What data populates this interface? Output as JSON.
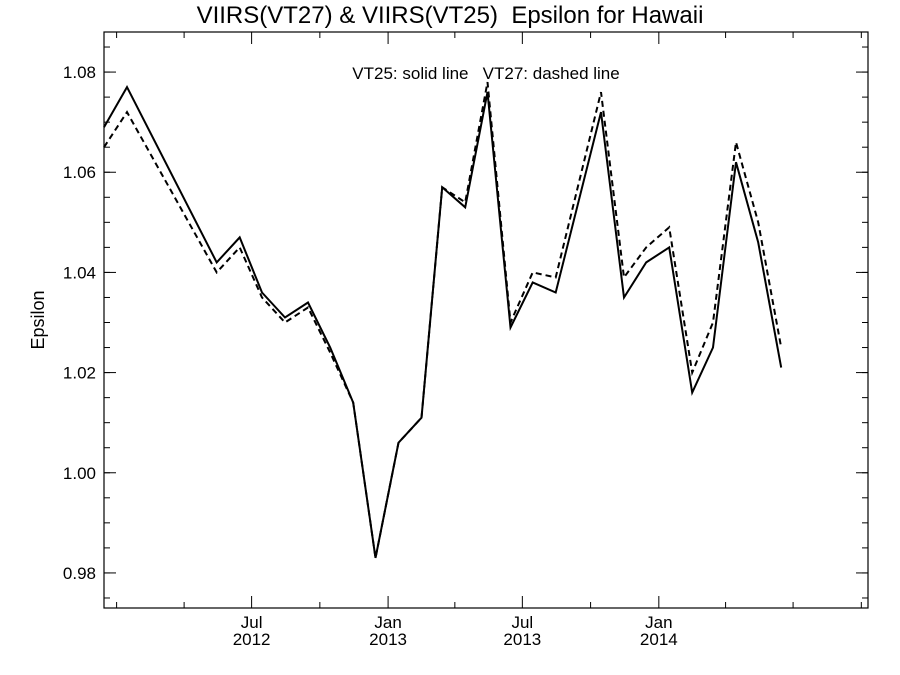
{
  "chart_data": {
    "type": "line",
    "title": "VIIRS(VT27) & VIIRS(VT25)  Epsilon for Hawaii",
    "ylabel": "Epsilon",
    "xlabel": "",
    "annotation": "VT25: solid line   VT27: dashed line",
    "ylim": [
      0.973,
      1.088
    ],
    "yticks": [
      "0.98",
      "1.00",
      "1.02",
      "1.04",
      "1.06",
      "1.08"
    ],
    "ytick_values": [
      0.98,
      1.0,
      1.02,
      1.04,
      1.06,
      1.08
    ],
    "xlim": [
      "2011-12-15",
      "2014-10-10"
    ],
    "xticks": [
      {
        "date": "2012-07-01",
        "month": "Jul",
        "year": "2012"
      },
      {
        "date": "2013-01-01",
        "month": "Jan",
        "year": "2013"
      },
      {
        "date": "2013-07-01",
        "month": "Jul",
        "year": "2013"
      },
      {
        "date": "2014-01-01",
        "month": "Jan",
        "year": "2014"
      }
    ],
    "grid": false,
    "series": [
      {
        "name": "VT25",
        "style": "solid",
        "color": "#000000",
        "points": [
          [
            "2011-12-15",
            1.069
          ],
          [
            "2012-01-15",
            1.077
          ],
          [
            "2012-05-15",
            1.042
          ],
          [
            "2012-06-15",
            1.047
          ],
          [
            "2012-07-15",
            1.036
          ],
          [
            "2012-08-15",
            1.031
          ],
          [
            "2012-09-15",
            1.034
          ],
          [
            "2012-10-15",
            1.025
          ],
          [
            "2012-11-15",
            1.014
          ],
          [
            "2012-12-15",
            0.983
          ],
          [
            "2013-01-15",
            1.006
          ],
          [
            "2013-02-15",
            1.011
          ],
          [
            "2013-03-15",
            1.057
          ],
          [
            "2013-04-15",
            1.053
          ],
          [
            "2013-05-15",
            1.076
          ],
          [
            "2013-06-15",
            1.029
          ],
          [
            "2013-07-15",
            1.038
          ],
          [
            "2013-08-15",
            1.036
          ],
          [
            "2013-10-15",
            1.072
          ],
          [
            "2013-11-15",
            1.035
          ],
          [
            "2013-12-15",
            1.042
          ],
          [
            "2014-01-15",
            1.045
          ],
          [
            "2014-02-15",
            1.016
          ],
          [
            "2014-03-15",
            1.025
          ],
          [
            "2014-04-15",
            1.062
          ],
          [
            "2014-05-15",
            1.046
          ],
          [
            "2014-06-15",
            1.021
          ]
        ]
      },
      {
        "name": "VT27",
        "style": "dashed",
        "color": "#000000",
        "points": [
          [
            "2011-12-15",
            1.065
          ],
          [
            "2012-01-15",
            1.072
          ],
          [
            "2012-05-15",
            1.04
          ],
          [
            "2012-06-15",
            1.045
          ],
          [
            "2012-07-15",
            1.035
          ],
          [
            "2012-08-15",
            1.03
          ],
          [
            "2012-09-15",
            1.033
          ],
          [
            "2012-10-15",
            1.024
          ],
          [
            "2012-11-15",
            1.014
          ],
          [
            "2012-12-15",
            0.983
          ],
          [
            "2013-01-15",
            1.006
          ],
          [
            "2013-02-15",
            1.011
          ],
          [
            "2013-03-15",
            1.057
          ],
          [
            "2013-04-15",
            1.054
          ],
          [
            "2013-05-15",
            1.078
          ],
          [
            "2013-06-15",
            1.03
          ],
          [
            "2013-07-15",
            1.04
          ],
          [
            "2013-08-15",
            1.039
          ],
          [
            "2013-10-15",
            1.076
          ],
          [
            "2013-11-15",
            1.039
          ],
          [
            "2013-12-15",
            1.045
          ],
          [
            "2014-01-15",
            1.049
          ],
          [
            "2014-02-15",
            1.02
          ],
          [
            "2014-03-15",
            1.03
          ],
          [
            "2014-04-15",
            1.066
          ],
          [
            "2014-05-15",
            1.05
          ],
          [
            "2014-06-15",
            1.025
          ]
        ]
      }
    ]
  }
}
